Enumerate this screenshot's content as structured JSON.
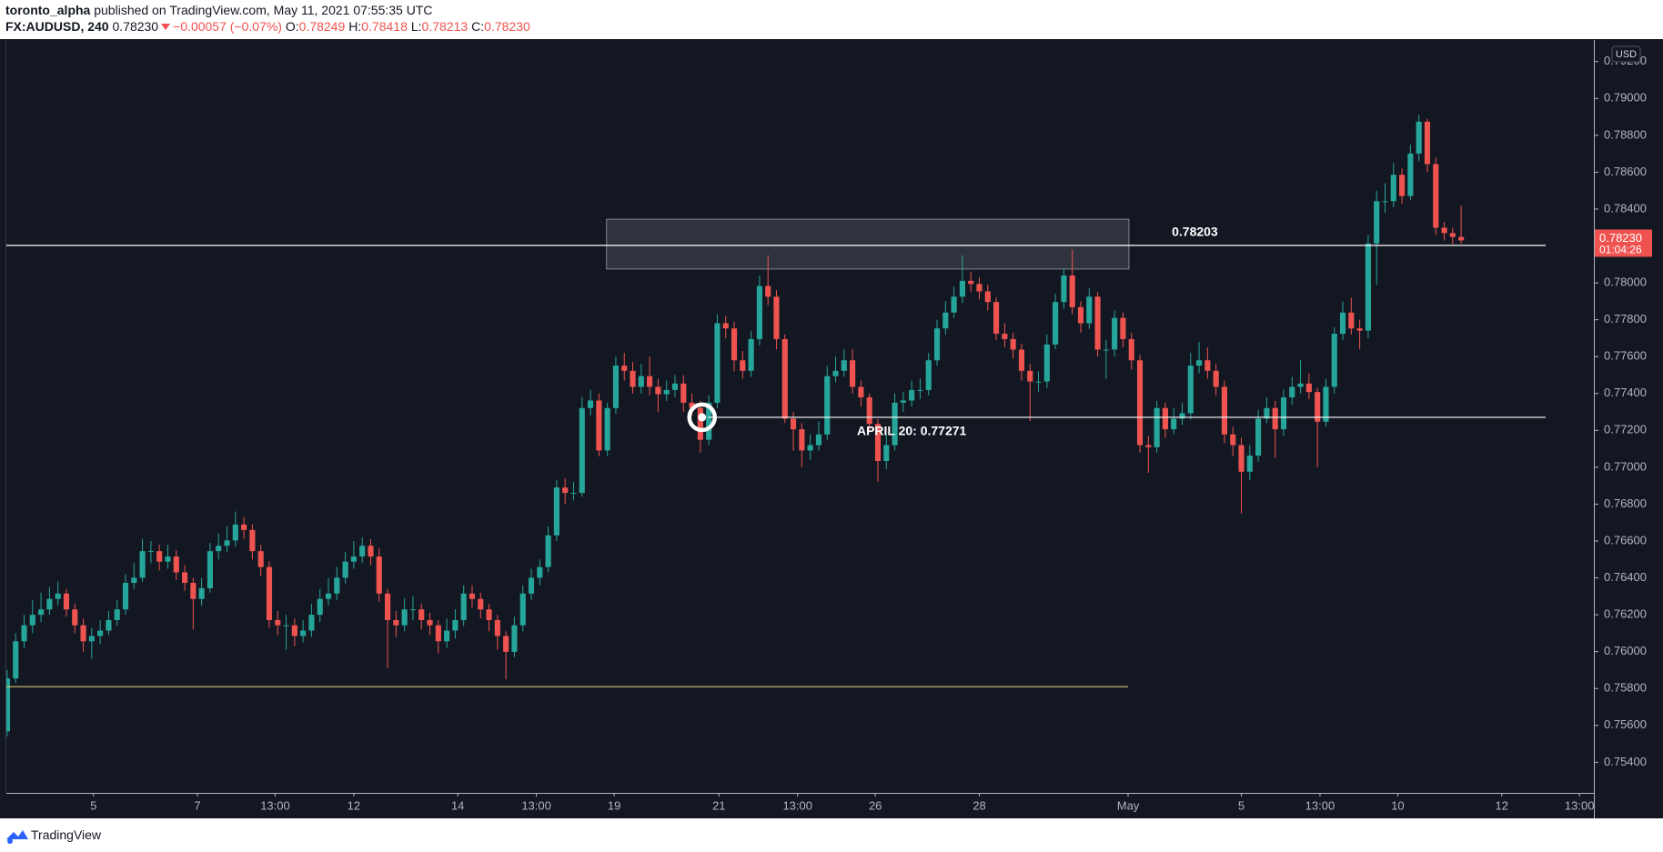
{
  "header": {
    "author": "toronto_alpha",
    "published": "published on TradingView.com, May 11, 2021 07:55:35 UTC",
    "symbol": "FX:AUDUSD, 240",
    "price": "0.78230",
    "change": "−0.00057 (−0.07%)",
    "ohlc": [
      {
        "key": "O:",
        "value": "0.78249"
      },
      {
        "key": "H:",
        "value": "0.78418"
      },
      {
        "key": "L:",
        "value": "0.78213"
      },
      {
        "key": "C:",
        "value": "0.78230"
      }
    ]
  },
  "footer": {
    "brand": "TradingView"
  },
  "chart_data": {
    "type": "candlestick",
    "currency": "USD",
    "colors": {
      "up": "#26a69a",
      "down": "#ef5350"
    },
    "xlim": [
      -0.1,
      187.7
    ],
    "xticks": [
      {
        "value": 10.2,
        "label": "5"
      },
      {
        "value": 22.5,
        "label": "7"
      },
      {
        "value": 31.7,
        "label": "13:00"
      },
      {
        "value": 41.0,
        "label": "12"
      },
      {
        "value": 53.3,
        "label": "14"
      },
      {
        "value": 62.6,
        "label": "13:00"
      },
      {
        "value": 71.8,
        "label": "19"
      },
      {
        "value": 84.2,
        "label": "21"
      },
      {
        "value": 93.5,
        "label": "13:00"
      },
      {
        "value": 102.7,
        "label": "26"
      },
      {
        "value": 115.0,
        "label": "28"
      },
      {
        "value": 132.6,
        "label": "May"
      },
      {
        "value": 146.0,
        "label": "5"
      },
      {
        "value": 155.3,
        "label": "13:00"
      },
      {
        "value": 164.5,
        "label": "10"
      },
      {
        "value": 176.8,
        "label": "12"
      },
      {
        "value": 186.0,
        "label": "13:00"
      }
    ],
    "ylim": [
      0.75234,
      0.79317
    ],
    "yticks": [
      {
        "value": 0.754,
        "label": "0.75400"
      },
      {
        "value": 0.756,
        "label": "0.75600"
      },
      {
        "value": 0.758,
        "label": "0.75800"
      },
      {
        "value": 0.76,
        "label": "0.76000"
      },
      {
        "value": 0.762,
        "label": "0.76200"
      },
      {
        "value": 0.764,
        "label": "0.76400"
      },
      {
        "value": 0.766,
        "label": "0.76600"
      },
      {
        "value": 0.768,
        "label": "0.76800"
      },
      {
        "value": 0.77,
        "label": "0.77000"
      },
      {
        "value": 0.772,
        "label": "0.77200"
      },
      {
        "value": 0.774,
        "label": "0.77400"
      },
      {
        "value": 0.776,
        "label": "0.77600"
      },
      {
        "value": 0.778,
        "label": "0.77800"
      },
      {
        "value": 0.78,
        "label": "0.78000"
      },
      {
        "value": 0.782,
        "label": "0.78200"
      },
      {
        "value": 0.784,
        "label": "0.78400"
      },
      {
        "value": 0.786,
        "label": "0.78600"
      },
      {
        "value": 0.788,
        "label": "0.78800"
      },
      {
        "value": 0.79,
        "label": "0.79000"
      },
      {
        "value": 0.792,
        "label": "0.79200"
      }
    ],
    "open": [
      0.75568,
      0.75855,
      0.76056,
      0.76143,
      0.762,
      0.76229,
      0.76286,
      0.76315,
      0.76229,
      0.76143,
      0.76056,
      0.76085,
      0.76114,
      0.76171,
      0.76229,
      0.76373,
      0.76401,
      0.76545,
      0.76545,
      0.76488,
      0.76516,
      0.7643,
      0.76373,
      0.76286,
      0.76344,
      0.76545,
      0.76574,
      0.76603,
      0.76689,
      0.7666,
      0.76545,
      0.76459,
      0.76171,
      0.76143,
      0.76143,
      0.76085,
      0.76114,
      0.762,
      0.76286,
      0.76315,
      0.76401,
      0.76488,
      0.76516,
      0.76574,
      0.76516,
      0.76315,
      0.76171,
      0.76143,
      0.76229,
      0.76229,
      0.76171,
      0.76143,
      0.76056,
      0.76114,
      0.76171,
      0.76315,
      0.76286,
      0.76229,
      0.76171,
      0.76085,
      0.75999,
      0.76143,
      0.76315,
      0.76401,
      0.76459,
      0.76631,
      0.7689,
      0.76861,
      0.76861,
      0.77321,
      0.77362,
      0.77091,
      0.77321,
      0.77551,
      0.77523,
      0.77436,
      0.77494,
      0.77436,
      0.77396,
      0.77419,
      0.77454,
      0.7735,
      0.77321,
      0.77149,
      0.7735,
      0.77781,
      0.77753,
      0.7758,
      0.77523,
      0.77695,
      0.77983,
      0.77925,
      0.77695,
      0.77264,
      0.77206,
      0.77091,
      0.7712,
      0.77178,
      0.77494,
      0.77523,
      0.7758,
      0.77436,
      0.77379,
      0.77235,
      0.77034,
      0.7712,
      0.7735,
      0.77362,
      0.77419,
      0.77419,
      0.7758,
      0.77753,
      0.77839,
      0.77925,
      0.78011,
      0.77994,
      0.77954,
      0.77896,
      0.77724,
      0.77695,
      0.77638,
      0.77523,
      0.77465,
      0.77465,
      0.77666,
      0.77896,
      0.7804,
      0.77868,
      0.77781,
      0.77925,
      0.77638,
      0.77638,
      0.7781,
      0.77695,
      0.7758,
      0.7712,
      0.77109,
      0.77321,
      0.77206,
      0.77264,
      0.77293,
      0.77551,
      0.7758,
      0.77523,
      0.77436,
      0.77178,
      0.7712,
      0.76976,
      0.77063,
      0.77264,
      0.77321,
      0.77206,
      0.77379,
      0.77436,
      0.77454,
      0.77408,
      0.77247,
      0.77436,
      0.77724,
      0.77839,
      0.77753,
      0.77741,
      0.78213,
      0.78443,
      0.78443,
      0.78586,
      0.78471,
      0.78701,
      0.78874,
      0.78644,
      0.78299,
      0.7827,
      0.78249
    ],
    "high": [
      0.759,
      0.761,
      0.762,
      0.7628,
      0.7632,
      0.7635,
      0.7638,
      0.7634,
      0.7626,
      0.7618,
      0.7613,
      0.7617,
      0.7622,
      0.7628,
      0.7642,
      0.7648,
      0.7661,
      0.766,
      0.7658,
      0.7658,
      0.7655,
      0.7647,
      0.764,
      0.764,
      0.7659,
      0.7664,
      0.7668,
      0.7676,
      0.7673,
      0.7669,
      0.7658,
      0.7649,
      0.7622,
      0.762,
      0.7618,
      0.7617,
      0.7626,
      0.7634,
      0.764,
      0.7646,
      0.7654,
      0.766,
      0.7662,
      0.7661,
      0.7656,
      0.7634,
      0.7622,
      0.7629,
      0.763,
      0.7626,
      0.7621,
      0.7617,
      0.7618,
      0.7623,
      0.7636,
      0.7636,
      0.7632,
      0.7626,
      0.762,
      0.7611,
      0.7619,
      0.7636,
      0.7645,
      0.765,
      0.7668,
      0.7693,
      0.7694,
      0.7692,
      0.7738,
      0.7742,
      0.774,
      0.7735,
      0.776,
      0.7762,
      0.7757,
      0.7756,
      0.776,
      0.7748,
      0.7747,
      0.775,
      0.775,
      0.774,
      0.7736,
      0.7739,
      0.7783,
      0.7782,
      0.7779,
      0.7763,
      0.7774,
      0.7804,
      0.7815,
      0.7796,
      0.7772,
      0.773,
      0.7724,
      0.7718,
      0.7725,
      0.7755,
      0.776,
      0.7764,
      0.7764,
      0.7747,
      0.774,
      0.7726,
      0.7718,
      0.774,
      0.7741,
      0.7747,
      0.7748,
      0.7762,
      0.778,
      0.779,
      0.7798,
      0.7815,
      0.7806,
      0.7803,
      0.7799,
      0.7792,
      0.7778,
      0.7773,
      0.7767,
      0.7756,
      0.7752,
      0.7772,
      0.7794,
      0.7808,
      0.7818,
      0.779,
      0.7797,
      0.7795,
      0.7769,
      0.7785,
      0.7784,
      0.7773,
      0.7761,
      0.7717,
      0.7736,
      0.7735,
      0.7732,
      0.7735,
      0.7762,
      0.7768,
      0.7765,
      0.7756,
      0.7747,
      0.7722,
      0.7716,
      0.7712,
      0.7731,
      0.7738,
      0.7736,
      0.7742,
      0.7749,
      0.7758,
      0.7751,
      0.7743,
      0.7748,
      0.7776,
      0.779,
      0.7792,
      0.778,
      0.7826,
      0.785,
      0.7854,
      0.7865,
      0.7862,
      0.7875,
      0.7891,
      0.7889,
      0.7868,
      0.7833,
      0.783,
      0.78418
    ],
    "low": [
      0.7554,
      0.7583,
      0.7602,
      0.761,
      0.7616,
      0.762,
      0.7625,
      0.7619,
      0.761,
      0.76,
      0.7596,
      0.7604,
      0.7609,
      0.7614,
      0.762,
      0.7634,
      0.7638,
      0.7648,
      0.7644,
      0.7645,
      0.7639,
      0.7633,
      0.7612,
      0.7625,
      0.7632,
      0.765,
      0.7654,
      0.7657,
      0.7661,
      0.765,
      0.7641,
      0.7613,
      0.7609,
      0.7601,
      0.7603,
      0.7605,
      0.7608,
      0.7616,
      0.7625,
      0.7628,
      0.7637,
      0.7645,
      0.7648,
      0.7647,
      0.7627,
      0.7591,
      0.7608,
      0.7611,
      0.7617,
      0.7612,
      0.7609,
      0.7599,
      0.7602,
      0.7607,
      0.7614,
      0.7624,
      0.7618,
      0.7611,
      0.7601,
      0.7585,
      0.7597,
      0.7611,
      0.7628,
      0.7636,
      0.7643,
      0.766,
      0.768,
      0.7682,
      0.7684,
      0.7728,
      0.7706,
      0.7706,
      0.7729,
      0.7747,
      0.774,
      0.774,
      0.7739,
      0.773,
      0.7736,
      0.7738,
      0.773,
      0.7728,
      0.7708,
      0.7712,
      0.7732,
      0.777,
      0.7752,
      0.7748,
      0.7749,
      0.7766,
      0.7788,
      0.7764,
      0.7724,
      0.7709,
      0.77,
      0.7704,
      0.7709,
      0.7715,
      0.7746,
      0.7749,
      0.774,
      0.7733,
      0.7719,
      0.7692,
      0.7699,
      0.7709,
      0.773,
      0.7733,
      0.7737,
      0.7739,
      0.7755,
      0.7772,
      0.7781,
      0.7789,
      0.7795,
      0.7791,
      0.7785,
      0.7769,
      0.7765,
      0.7759,
      0.7747,
      0.7725,
      0.7741,
      0.7743,
      0.7764,
      0.7786,
      0.7783,
      0.7773,
      0.7775,
      0.776,
      0.7748,
      0.776,
      0.7765,
      0.7753,
      0.7708,
      0.7697,
      0.7708,
      0.7716,
      0.7718,
      0.7723,
      0.7726,
      0.7751,
      0.7748,
      0.7739,
      0.7713,
      0.7706,
      0.7675,
      0.7693,
      0.7703,
      0.7724,
      0.7705,
      0.7717,
      0.7734,
      0.774,
      0.7737,
      0.77,
      0.7722,
      0.774,
      0.7769,
      0.7772,
      0.7764,
      0.777,
      0.7799,
      0.7838,
      0.7841,
      0.7843,
      0.7845,
      0.7866,
      0.786,
      0.7826,
      0.7823,
      0.7821,
      0.78213
    ],
    "close": [
      0.75855,
      0.76056,
      0.76143,
      0.762,
      0.76229,
      0.76286,
      0.76315,
      0.76229,
      0.76143,
      0.76056,
      0.76085,
      0.76114,
      0.76171,
      0.76229,
      0.76373,
      0.76401,
      0.76545,
      0.76545,
      0.76488,
      0.76516,
      0.7643,
      0.76373,
      0.76286,
      0.76344,
      0.76545,
      0.76574,
      0.76603,
      0.76689,
      0.7666,
      0.76545,
      0.76459,
      0.76171,
      0.76143,
      0.76143,
      0.76085,
      0.76114,
      0.762,
      0.76286,
      0.76315,
      0.76401,
      0.76488,
      0.76516,
      0.76574,
      0.76516,
      0.76315,
      0.76171,
      0.76143,
      0.76229,
      0.76229,
      0.76171,
      0.76143,
      0.76056,
      0.76114,
      0.76171,
      0.76315,
      0.76286,
      0.76229,
      0.76171,
      0.76085,
      0.75999,
      0.76143,
      0.76315,
      0.76401,
      0.76459,
      0.76631,
      0.7689,
      0.76861,
      0.76861,
      0.77321,
      0.77362,
      0.77091,
      0.77321,
      0.77551,
      0.77523,
      0.77436,
      0.77494,
      0.77436,
      0.77396,
      0.77419,
      0.77454,
      0.7735,
      0.77321,
      0.77149,
      0.7735,
      0.77781,
      0.77753,
      0.7758,
      0.77523,
      0.77695,
      0.77983,
      0.77925,
      0.77695,
      0.77264,
      0.77206,
      0.77091,
      0.7712,
      0.77178,
      0.77494,
      0.77523,
      0.7758,
      0.77436,
      0.77379,
      0.77235,
      0.77034,
      0.7712,
      0.7735,
      0.77362,
      0.77419,
      0.77419,
      0.7758,
      0.77753,
      0.77839,
      0.77925,
      0.78011,
      0.77994,
      0.77954,
      0.77896,
      0.77724,
      0.77695,
      0.77638,
      0.77523,
      0.77465,
      0.77465,
      0.77666,
      0.77896,
      0.7804,
      0.77868,
      0.77781,
      0.77925,
      0.77638,
      0.77638,
      0.7781,
      0.77695,
      0.7758,
      0.7712,
      0.77109,
      0.77321,
      0.77206,
      0.77264,
      0.77293,
      0.77551,
      0.7758,
      0.77523,
      0.77436,
      0.77178,
      0.7712,
      0.76976,
      0.77063,
      0.77264,
      0.77321,
      0.77206,
      0.77379,
      0.77436,
      0.77454,
      0.77408,
      0.77247,
      0.77436,
      0.77724,
      0.77839,
      0.77753,
      0.77741,
      0.78213,
      0.78443,
      0.78443,
      0.78586,
      0.78471,
      0.78701,
      0.78874,
      0.78644,
      0.78299,
      0.7827,
      0.78249,
      0.7823
    ],
    "last_price": {
      "value": 0.7823,
      "label": "0.78230",
      "countdown": "01:04:26"
    },
    "drawings": {
      "zone": {
        "x": [
          70.9,
          132.7
        ],
        "y": [
          0.78075,
          0.78345
        ]
      },
      "levels": [
        {
          "price": 0.78203,
          "label": "0.78203",
          "x": [
            -0.1,
            182.0
          ],
          "color": "#ffffff"
        },
        {
          "price": 0.77271,
          "label": "APRIL 20: 0.77271",
          "x": [
            82.9,
            182.0
          ],
          "color": "#ffffff"
        },
        {
          "price": 0.7581,
          "x": [
            -0.1,
            132.6
          ],
          "color": "#d8c66c"
        }
      ],
      "marker": {
        "x": 82.2,
        "price": 0.77271
      }
    }
  }
}
